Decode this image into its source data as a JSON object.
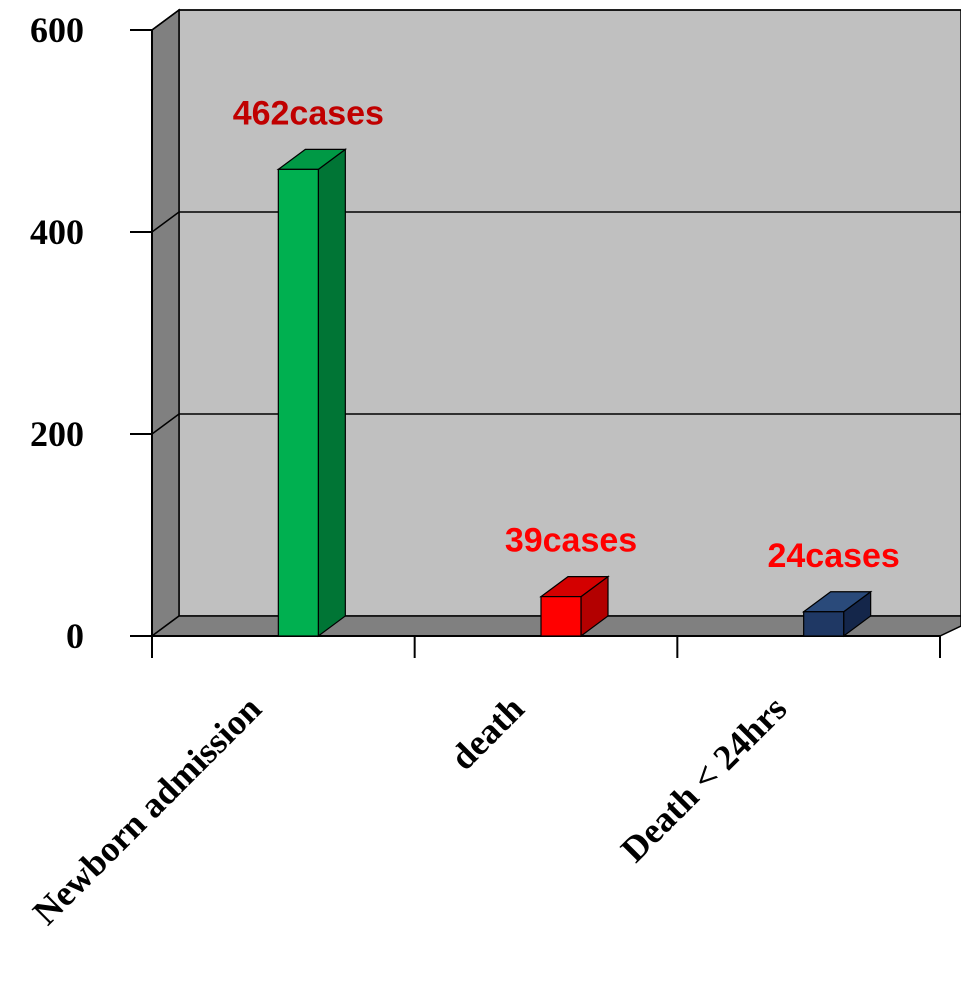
{
  "chart_data": {
    "type": "bar",
    "categories": [
      "Newborn admission",
      "death",
      "Death < 24hrs"
    ],
    "values": [
      462,
      39,
      24
    ],
    "data_labels": [
      "462cases",
      "39cases",
      "24cases"
    ],
    "title": "",
    "xlabel": "",
    "ylabel": "",
    "ylim": [
      0,
      600
    ],
    "yticks": [
      0,
      200,
      400,
      600
    ],
    "grid": true,
    "legend": "none",
    "three_d": true,
    "bar_colors": [
      "#00b050",
      "#ff0000",
      "#1f3864"
    ],
    "bar_side_colors": [
      "#007535",
      "#b30000",
      "#14264a"
    ],
    "bar_top_colors": [
      "#009945",
      "#d40000",
      "#2a4a7a"
    ],
    "data_label_colors": [
      "#c00000",
      "#ff0000",
      "#ff0000"
    ],
    "wall_color": "#c0c0c0",
    "side_wall_color": "#808080",
    "floor_color": "#808080"
  }
}
